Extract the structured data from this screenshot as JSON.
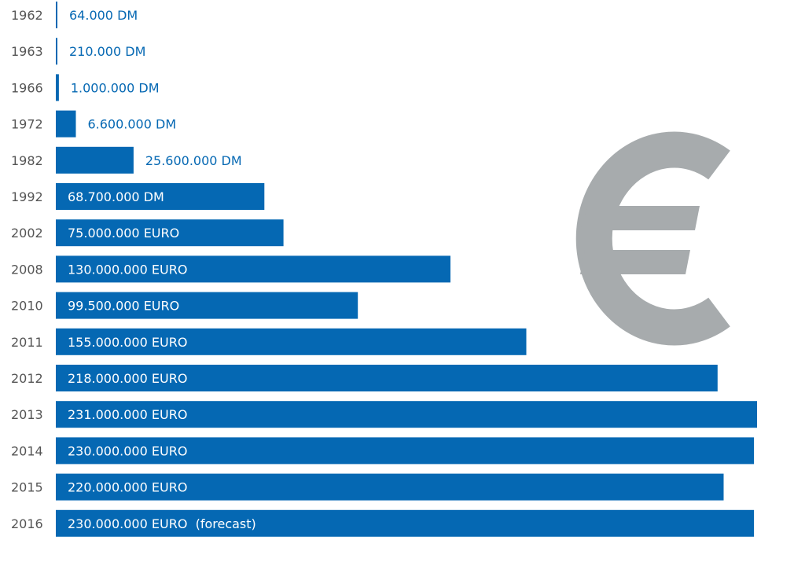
{
  "colors": {
    "bar": "#0568b3",
    "label_inside": "#ffffff",
    "label_outside": "#0568b3",
    "year_text": "#555555",
    "euro_symbol": "#a7abad"
  },
  "icon": "euro-sign-icon",
  "chart_data": {
    "type": "bar",
    "orientation": "horizontal",
    "categories": [
      "1962",
      "1963",
      "1966",
      "1972",
      "1982",
      "1992",
      "2002",
      "2008",
      "2010",
      "2011",
      "2012",
      "2013",
      "2014",
      "2015",
      "2016"
    ],
    "values": [
      64000,
      210000,
      1000000,
      6600000,
      25600000,
      68700000,
      75000000,
      130000000,
      99500000,
      155000000,
      218000000,
      231000000,
      230000000,
      220000000,
      230000000
    ],
    "value_labels": [
      "64.000 DM",
      "210.000 DM",
      "1.000.000 DM",
      "6.600.000 DM",
      "25.600.000 DM",
      "68.700.000 DM",
      "75.000.000 EURO",
      "130.000.000 EURO",
      "99.500.000 EURO",
      "155.000.000 EURO",
      "218.000.000 EURO",
      "231.000.000 EURO",
      "230.000.000 EURO",
      "220.000.000 EURO",
      "230.000.000 EURO  (forecast)"
    ]
  }
}
